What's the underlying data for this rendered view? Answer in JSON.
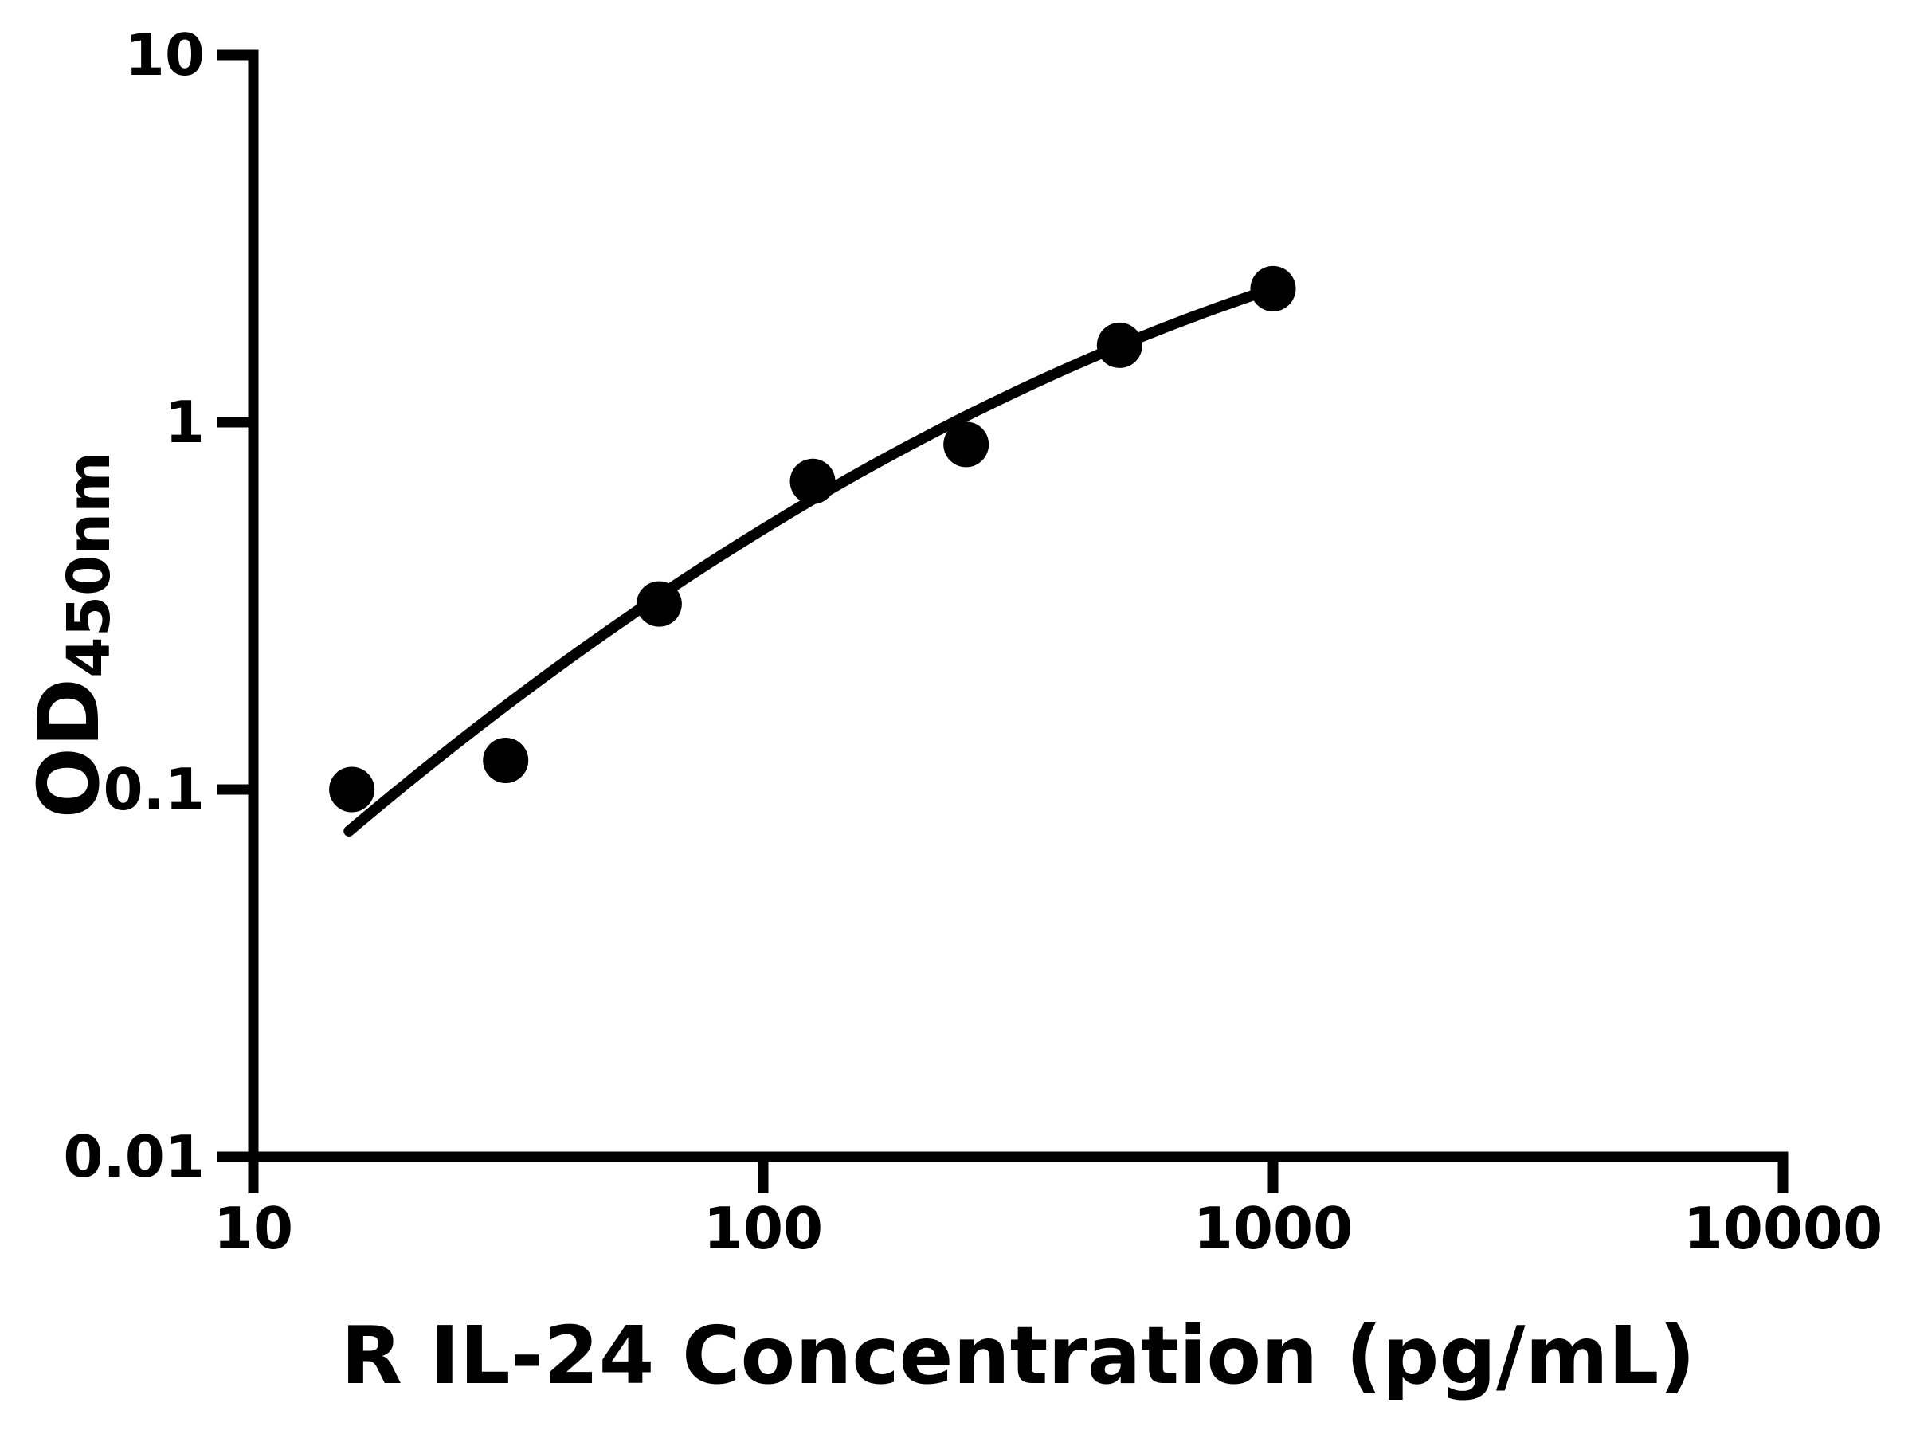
{
  "chart_data": {
    "type": "scatter",
    "title": "",
    "xlabel": "R IL-24 Concentration (pg/mL)",
    "ylabel": "OD450nm",
    "ylabel_main": "OD",
    "ylabel_sub": "450nm",
    "x_scale": "log10",
    "y_scale": "log10",
    "xlim": [
      10,
      10000
    ],
    "ylim": [
      0.01,
      10
    ],
    "grid": false,
    "legend": "none",
    "x_ticks": [
      10,
      100,
      1000,
      10000
    ],
    "x_tick_labels": [
      "10",
      "100",
      "1000",
      "10000"
    ],
    "y_ticks": [
      10,
      1,
      0.1,
      0.01
    ],
    "y_tick_labels": [
      "10",
      "1",
      "0.1",
      "0.01"
    ],
    "points": [
      {
        "x": 15.6,
        "y": 0.1
      },
      {
        "x": 31.25,
        "y": 0.12
      },
      {
        "x": 62.5,
        "y": 0.32
      },
      {
        "x": 125,
        "y": 0.69
      },
      {
        "x": 250,
        "y": 0.87
      },
      {
        "x": 500,
        "y": 1.62
      },
      {
        "x": 1000,
        "y": 2.31
      }
    ],
    "fit_curve": {
      "model": "log10(y) = a + b*u + c*u^2, where u = log10(x)",
      "a": -2.783,
      "b": 1.64,
      "c": -0.197,
      "x_start": 15.4,
      "x_end": 1000
    },
    "colors": {
      "points": "#000000",
      "curve": "#000000",
      "axis": "#000000",
      "text": "#000000",
      "background": "#ffffff"
    }
  }
}
